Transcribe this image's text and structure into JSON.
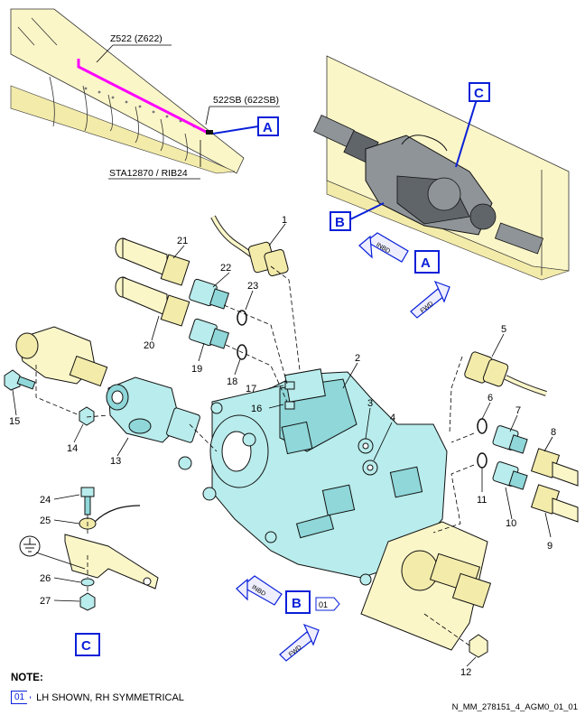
{
  "diagram": {
    "location_labels": {
      "z522": "Z522 (Z622)",
      "sb522": "522SB (622SB)",
      "sta": "STA12870 / RIB24"
    },
    "views": {
      "a": "A",
      "b": "B",
      "c": "C"
    },
    "arrows": {
      "inbd": "INBD",
      "fwd": "FWD"
    },
    "item_numbers": [
      "1",
      "2",
      "3",
      "4",
      "5",
      "6",
      "7",
      "8",
      "9",
      "10",
      "11",
      "12",
      "13",
      "14",
      "15",
      "16",
      "17",
      "18",
      "19",
      "20",
      "21",
      "22",
      "23",
      "24",
      "25",
      "26",
      "27"
    ],
    "effectivity_tag": "01",
    "colors": {
      "component_cyan": "#b9ecec",
      "structure_yellow": "#fbf6c8",
      "callout_blue": "#0a20d8",
      "highlight_magenta": "#ff00ff"
    }
  },
  "note": {
    "title": "NOTE:",
    "tag": "01",
    "text": "LH SHOWN, RH SYMMETRICAL"
  },
  "doc_code": "N_MM_278151_4_AGM0_01_01"
}
